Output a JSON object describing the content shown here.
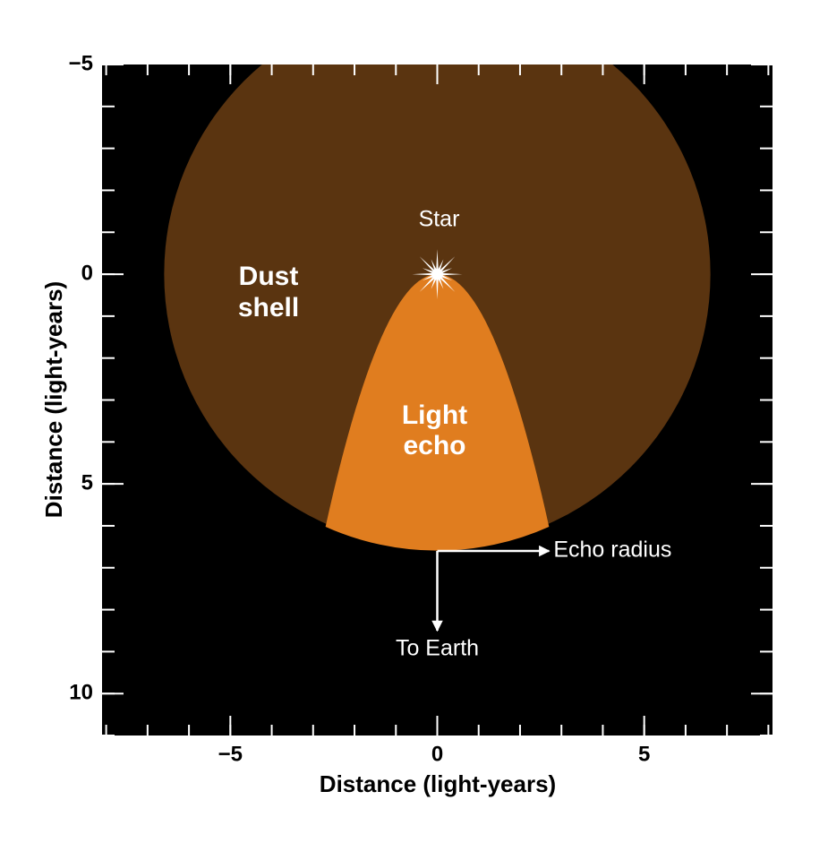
{
  "chart_data": {
    "type": "light-echo",
    "xlabel": "Distance (light-years)",
    "ylabel": "Distance (light-years)",
    "xlim": [
      -8.1,
      8.1
    ],
    "ylim": [
      -5,
      11
    ],
    "y_inverted": true,
    "xticks": [
      {
        "value": -5,
        "label": "−5"
      },
      0,
      5
    ],
    "yticks": [
      {
        "value": -5,
        "label": "−5"
      },
      0,
      5,
      10
    ],
    "minor_tick_step": 1,
    "background": "#000000",
    "dust_shell": {
      "label": [
        "Dust",
        "shell"
      ],
      "center": [
        0,
        0
      ],
      "radius": 6.6,
      "color": "#5a3410"
    },
    "light_echo": {
      "label": [
        "Light",
        "echo"
      ],
      "vertex": [
        0,
        0
      ],
      "curvature": 0.826,
      "color": "#e07d1f"
    },
    "star": {
      "label": "Star",
      "position": [
        0,
        0
      ]
    },
    "arrows": [
      {
        "label": "Echo radius",
        "from": [
          0,
          6.6
        ],
        "to": [
          2.7,
          6.6
        ]
      },
      {
        "label": "To Earth",
        "from": [
          0,
          6.6
        ],
        "to": [
          0,
          8.5
        ]
      }
    ]
  }
}
